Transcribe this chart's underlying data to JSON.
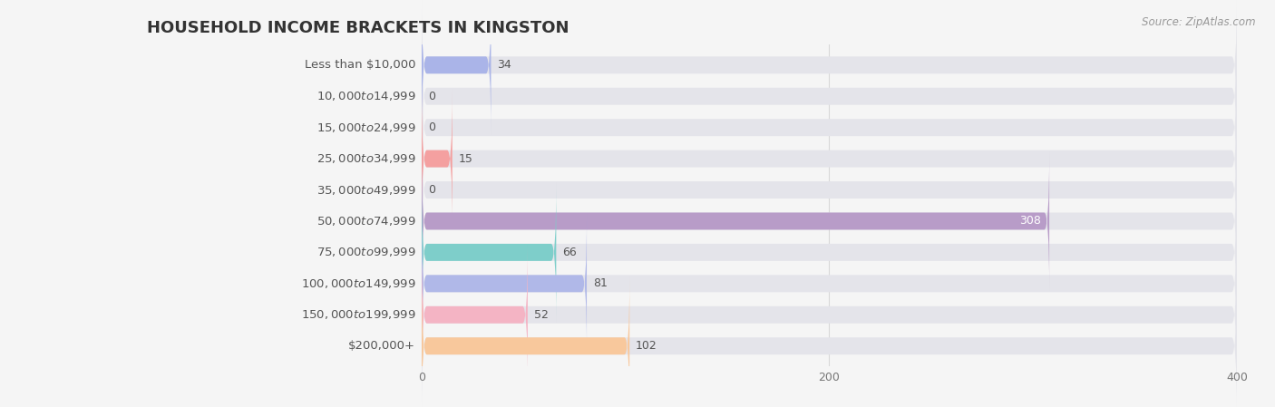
{
  "title": "HOUSEHOLD INCOME BRACKETS IN KINGSTON",
  "source": "Source: ZipAtlas.com",
  "categories": [
    "Less than $10,000",
    "$10,000 to $14,999",
    "$15,000 to $24,999",
    "$25,000 to $34,999",
    "$35,000 to $49,999",
    "$50,000 to $74,999",
    "$75,000 to $99,999",
    "$100,000 to $149,999",
    "$150,000 to $199,999",
    "$200,000+"
  ],
  "values": [
    34,
    0,
    0,
    15,
    0,
    308,
    66,
    81,
    52,
    102
  ],
  "bar_colors": [
    "#aab4e8",
    "#f4a8bc",
    "#f9c89a",
    "#f4a0a0",
    "#a8c8f0",
    "#b89cc8",
    "#7ececa",
    "#b0b8e8",
    "#f4b4c4",
    "#f8c89c"
  ],
  "value_inside": [
    false,
    false,
    false,
    false,
    false,
    true,
    false,
    false,
    false,
    false
  ],
  "background_color": "#f5f5f5",
  "bar_bg_color": "#e4e4ea",
  "grid_color": "#d8d8d8",
  "title_color": "#333333",
  "label_color": "#555555",
  "value_color_outside": "#555555",
  "value_color_inside": "#ffffff",
  "xlim_max": 400,
  "xticks": [
    0,
    200,
    400
  ],
  "title_fontsize": 13,
  "label_fontsize": 9.5,
  "value_fontsize": 9,
  "source_fontsize": 8.5
}
